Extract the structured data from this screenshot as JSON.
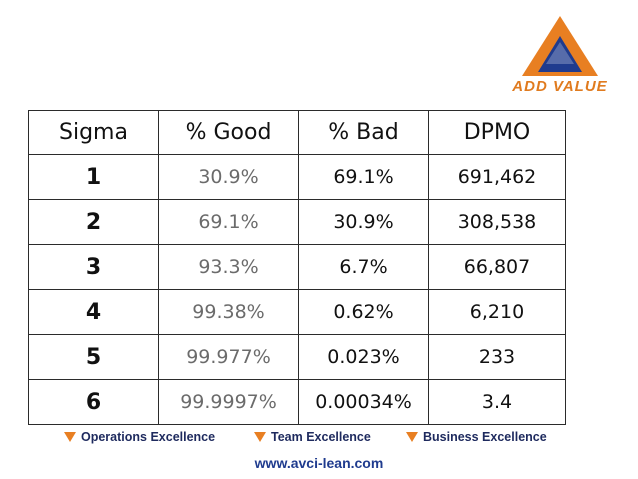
{
  "logo": {
    "text": "ADD VALUE",
    "icon": "triangle-logo-icon",
    "colors": {
      "outer": "#e87f22",
      "inner": "#1f3b8e"
    }
  },
  "table": {
    "headers": [
      "Sigma",
      "% Good",
      "% Bad",
      "DPMO"
    ],
    "rows": [
      [
        "1",
        "30.9%",
        "69.1%",
        "691,462"
      ],
      [
        "2",
        "69.1%",
        "30.9%",
        "308,538"
      ],
      [
        "3",
        "93.3%",
        "6.7%",
        "66,807"
      ],
      [
        "4",
        "99.38%",
        "0.62%",
        "6,210"
      ],
      [
        "5",
        "99.977%",
        "0.023%",
        "233"
      ],
      [
        "6",
        "99.9997%",
        "0.00034%",
        "3.4"
      ]
    ]
  },
  "footer": {
    "tags": [
      "Operations Excellence",
      "Team Excellence",
      "Business Excellence"
    ],
    "website": "www.avci-lean.com"
  },
  "colors": {
    "accent": "#e87f22",
    "brand": "#1f3b8e"
  }
}
